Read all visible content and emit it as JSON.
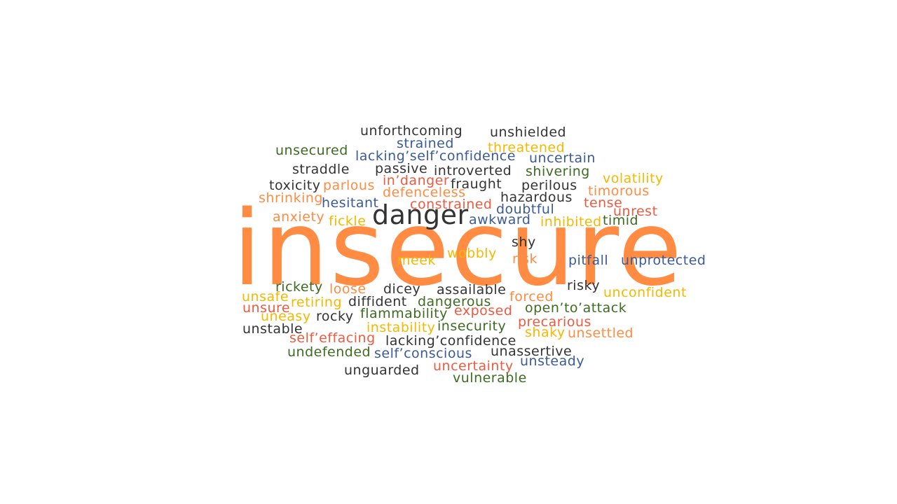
{
  "colors": {
    "orange": "#ff8c42",
    "dark": "#333333",
    "blue": "#3a5a98",
    "green": "#3d6b22",
    "yellow": "#f5b800",
    "red": "#ee5a40"
  },
  "cloud": {
    "main_word": "insecure",
    "secondary_word": "danger",
    "words": [
      {
        "text": "unforthcoming",
        "color": "dark"
      },
      {
        "text": "unshielded",
        "color": "dark"
      },
      {
        "text": "strained",
        "color": "blue"
      },
      {
        "text": "unsecured",
        "color": "green"
      },
      {
        "text": "lacking’self’confidence",
        "color": "blue"
      },
      {
        "text": "threatened",
        "color": "yellow"
      },
      {
        "text": "uncertain",
        "color": "blue"
      },
      {
        "text": "straddle",
        "color": "dark"
      },
      {
        "text": "passive",
        "color": "dark"
      },
      {
        "text": "introverted",
        "color": "dark"
      },
      {
        "text": "shivering",
        "color": "green"
      },
      {
        "text": "volatility",
        "color": "yellow"
      },
      {
        "text": "in’danger",
        "color": "red"
      },
      {
        "text": "toxicity",
        "color": "dark"
      },
      {
        "text": "parlous",
        "color": "orange"
      },
      {
        "text": "fraught",
        "color": "dark"
      },
      {
        "text": "perilous",
        "color": "dark"
      },
      {
        "text": "timorous",
        "color": "orange"
      },
      {
        "text": "defenceless",
        "color": "orange"
      },
      {
        "text": "shrinking",
        "color": "orange"
      },
      {
        "text": "hesitant",
        "color": "blue"
      },
      {
        "text": "hazardous",
        "color": "dark"
      },
      {
        "text": "tense",
        "color": "red"
      },
      {
        "text": "constrained",
        "color": "red"
      },
      {
        "text": "doubtful",
        "color": "blue"
      },
      {
        "text": "unrest",
        "color": "red"
      },
      {
        "text": "anxiety",
        "color": "orange"
      },
      {
        "text": "fickle",
        "color": "yellow"
      },
      {
        "text": "awkward",
        "color": "blue"
      },
      {
        "text": "inhibited",
        "color": "yellow"
      },
      {
        "text": "timid",
        "color": "green"
      },
      {
        "text": "shy",
        "color": "dark"
      },
      {
        "text": "wobbly",
        "color": "yellow"
      },
      {
        "text": "meek",
        "color": "yellow"
      },
      {
        "text": "risk",
        "color": "orange"
      },
      {
        "text": "pitfall",
        "color": "blue"
      },
      {
        "text": "unprotected",
        "color": "blue"
      },
      {
        "text": "rickety",
        "color": "green"
      },
      {
        "text": "loose",
        "color": "orange"
      },
      {
        "text": "dicey",
        "color": "dark"
      },
      {
        "text": "assailable",
        "color": "dark"
      },
      {
        "text": "risky",
        "color": "dark"
      },
      {
        "text": "unconfident",
        "color": "yellow"
      },
      {
        "text": "unsafe",
        "color": "yellow"
      },
      {
        "text": "retiring",
        "color": "yellow"
      },
      {
        "text": "diffident",
        "color": "dark"
      },
      {
        "text": "dangerous",
        "color": "green"
      },
      {
        "text": "forced",
        "color": "orange"
      },
      {
        "text": "unsure",
        "color": "red"
      },
      {
        "text": "open’to’attack",
        "color": "green"
      },
      {
        "text": "uneasy",
        "color": "yellow"
      },
      {
        "text": "rocky",
        "color": "dark"
      },
      {
        "text": "flammability",
        "color": "green"
      },
      {
        "text": "exposed",
        "color": "red"
      },
      {
        "text": "precarious",
        "color": "red"
      },
      {
        "text": "unstable",
        "color": "dark"
      },
      {
        "text": "instability",
        "color": "yellow"
      },
      {
        "text": "insecurity",
        "color": "green"
      },
      {
        "text": "shaky",
        "color": "yellow"
      },
      {
        "text": "unsettled",
        "color": "orange"
      },
      {
        "text": "self’effacing",
        "color": "red"
      },
      {
        "text": "lacking’confidence",
        "color": "dark"
      },
      {
        "text": "undefended",
        "color": "green"
      },
      {
        "text": "self’conscious",
        "color": "blue"
      },
      {
        "text": "unassertive",
        "color": "dark"
      },
      {
        "text": "unsteady",
        "color": "blue"
      },
      {
        "text": "unguarded",
        "color": "dark"
      },
      {
        "text": "uncertainty",
        "color": "red"
      },
      {
        "text": "vulnerable",
        "color": "green"
      }
    ]
  }
}
